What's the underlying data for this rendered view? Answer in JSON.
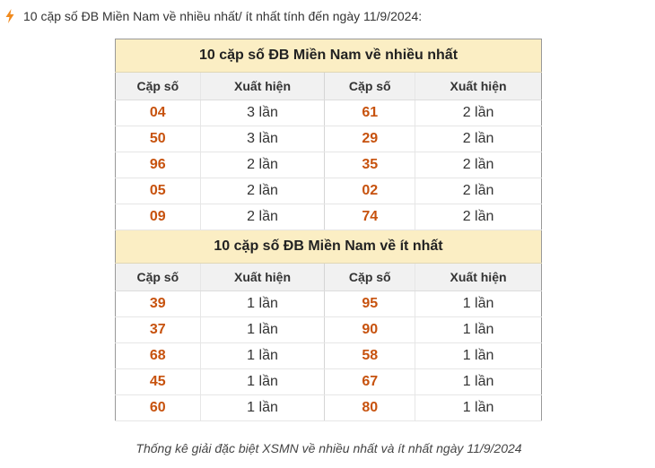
{
  "heading": "10 cặp số ĐB Miền Nam về nhiều nhất/ ít nhất tính đến ngày 11/9/2024:",
  "accent_color": "#f08a1e",
  "number_color": "#c7520e",
  "icon": "lightning-bolt-icon",
  "headers": {
    "pair": "Cặp số",
    "count": "Xuất hiện"
  },
  "most": {
    "title": "10 cặp số ĐB Miền Nam về nhiều nhất",
    "rows": [
      {
        "a_pair": "04",
        "a_count": "3 lần",
        "b_pair": "61",
        "b_count": "2 lần"
      },
      {
        "a_pair": "50",
        "a_count": "3 lần",
        "b_pair": "29",
        "b_count": "2 lần"
      },
      {
        "a_pair": "96",
        "a_count": "2 lần",
        "b_pair": "35",
        "b_count": "2 lần"
      },
      {
        "a_pair": "05",
        "a_count": "2 lần",
        "b_pair": "02",
        "b_count": "2 lần"
      },
      {
        "a_pair": "09",
        "a_count": "2 lần",
        "b_pair": "74",
        "b_count": "2 lần"
      }
    ]
  },
  "least": {
    "title": "10 cặp số ĐB Miền Nam về ít nhất",
    "rows": [
      {
        "a_pair": "39",
        "a_count": "1 lần",
        "b_pair": "95",
        "b_count": "1 lần"
      },
      {
        "a_pair": "37",
        "a_count": "1 lần",
        "b_pair": "90",
        "b_count": "1 lần"
      },
      {
        "a_pair": "68",
        "a_count": "1 lần",
        "b_pair": "58",
        "b_count": "1 lần"
      },
      {
        "a_pair": "45",
        "a_count": "1 lần",
        "b_pair": "67",
        "b_count": "1 lần"
      },
      {
        "a_pair": "60",
        "a_count": "1 lần",
        "b_pair": "80",
        "b_count": "1 lần"
      }
    ]
  },
  "caption": "Thống kê giải đặc biệt XSMN về nhiều nhất và ít nhất ngày 11/9/2024"
}
